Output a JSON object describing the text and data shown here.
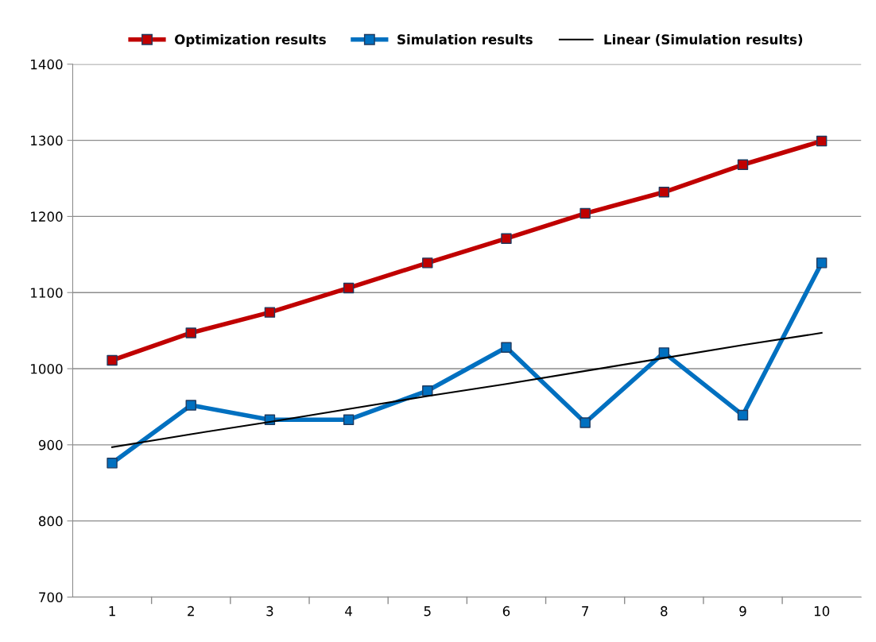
{
  "chart_data": {
    "type": "line",
    "categories": [
      "1",
      "2",
      "3",
      "4",
      "5",
      "6",
      "7",
      "8",
      "9",
      "10"
    ],
    "series": [
      {
        "name": "Optimization results",
        "color": "#c00000",
        "values": [
          1011,
          1047,
          1074,
          1106,
          1139,
          1171,
          1204,
          1232,
          1268,
          1299
        ]
      },
      {
        "name": "Simulation results",
        "color": "#0070c0",
        "values": [
          876,
          952,
          933,
          933,
          971,
          1028,
          929,
          1021,
          939,
          1139
        ]
      },
      {
        "name": "Linear (Simulation results)",
        "color": "#000000",
        "values": [
          897,
          914,
          930,
          947,
          964,
          980,
          997,
          1014,
          1031,
          1047
        ],
        "marker": "none"
      }
    ],
    "ylim": [
      700,
      1400
    ],
    "yticks": [
      700,
      800,
      900,
      1000,
      1100,
      1200,
      1300,
      1400
    ],
    "grid": "y",
    "legend": "top",
    "marker": "square",
    "line_style": "solid"
  }
}
